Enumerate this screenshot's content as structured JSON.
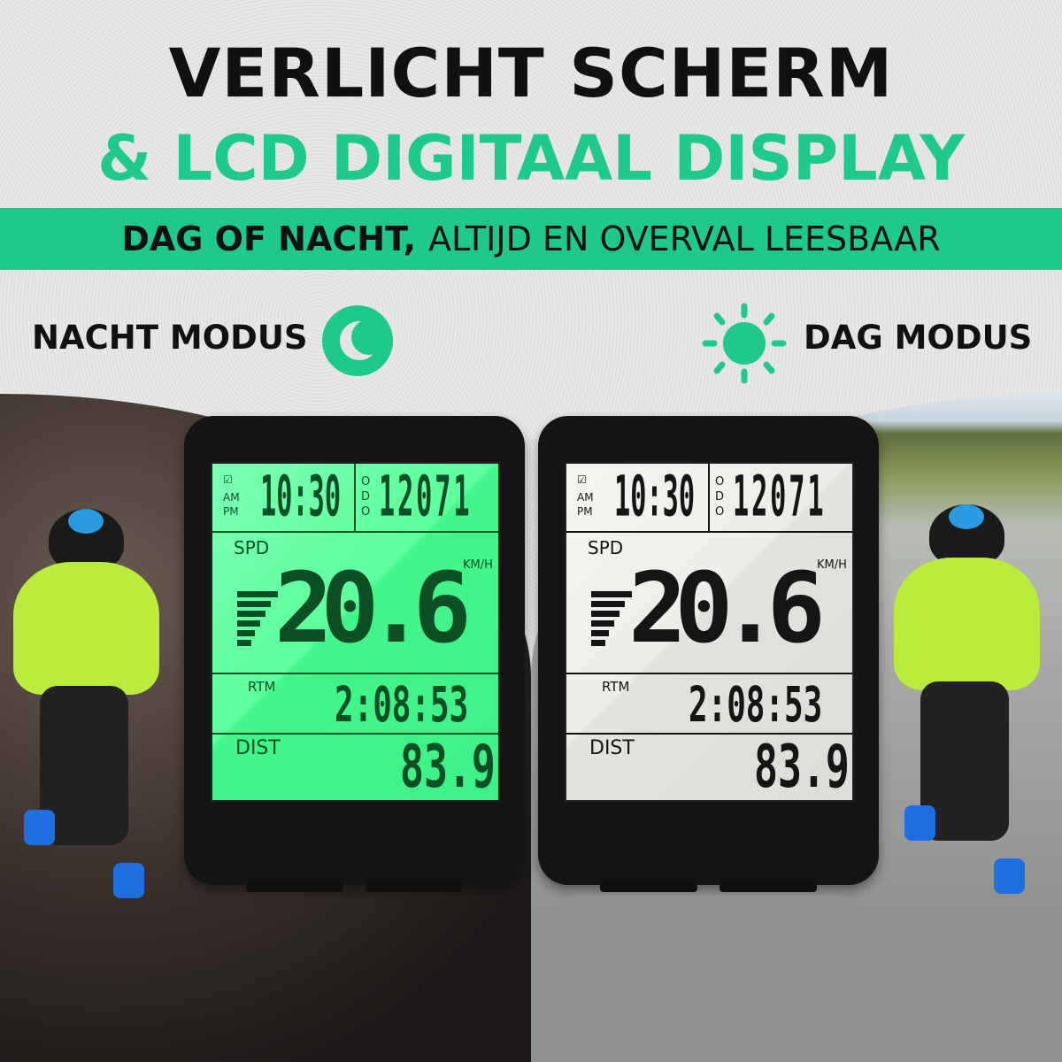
{
  "headline": {
    "line1": "VERLICHT SCHERM",
    "line2": "& LCD DIGITAAL DISPLAY"
  },
  "band": {
    "bold": "DAG OF NACHT,",
    "regular": "ALTIJD EN OVERVAL LEESBAAR"
  },
  "night_mode": {
    "label": "NACHT MODUS",
    "icon": "moon-icon"
  },
  "day_mode": {
    "label": "DAG MODUS",
    "icon": "sun-icon"
  },
  "colors": {
    "accent": "#1fc98b",
    "night_lcd": "#5dff9e",
    "day_lcd": "#ececE8"
  },
  "lcd": {
    "ampm_am": "AM",
    "ampm_pm": "PM",
    "time": "10:30",
    "odo_label": "ODO",
    "odo": "12071",
    "spd_label": "SPD",
    "speed": "20.6",
    "unit": "KM/H",
    "rtm_label": "RTM",
    "rtm": "2:08:53",
    "dist_label": "DIST",
    "dist": "83.9"
  }
}
